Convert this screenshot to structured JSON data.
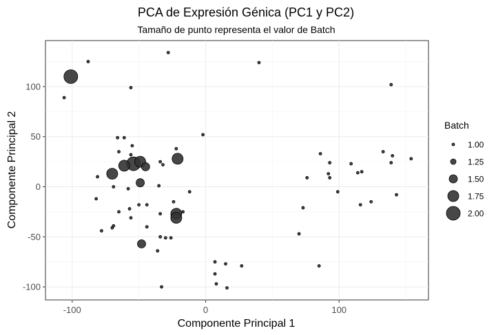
{
  "chart_data": {
    "type": "scatter",
    "title": "PCA de Expresión Génica (PC1 y PC2)",
    "subtitle": "Tamaño de punto representa el valor de Batch",
    "xlabel": "Componente Principal 1",
    "ylabel": "Componente Principal 2",
    "xlim": [
      -120,
      167
    ],
    "ylim": [
      -113,
      146
    ],
    "x_ticks": [
      -100,
      0,
      100
    ],
    "y_ticks": [
      -100,
      -50,
      0,
      50,
      100
    ],
    "grid": true,
    "point_color": "#333333",
    "legend": {
      "title": "Batch",
      "placement": "right",
      "entries": [
        "1.00",
        "1.25",
        "1.50",
        "1.75",
        "2.00"
      ],
      "values": [
        1.0,
        1.25,
        1.5,
        1.75,
        2.0
      ]
    },
    "points": [
      {
        "x": -101,
        "y": 110,
        "batch": 2.0
      },
      {
        "x": -88,
        "y": 125,
        "batch": 1.0
      },
      {
        "x": -106,
        "y": 89,
        "batch": 1.0
      },
      {
        "x": -28,
        "y": 134,
        "batch": 1.0
      },
      {
        "x": -56,
        "y": 99,
        "batch": 1.0
      },
      {
        "x": 40,
        "y": 124,
        "batch": 1.0
      },
      {
        "x": 139,
        "y": 102,
        "batch": 1.0
      },
      {
        "x": -2,
        "y": 52,
        "batch": 1.0
      },
      {
        "x": -66,
        "y": 49,
        "batch": 1.0
      },
      {
        "x": -61,
        "y": 49,
        "batch": 1.0
      },
      {
        "x": -55,
        "y": 41,
        "batch": 1.0
      },
      {
        "x": -65,
        "y": 35,
        "batch": 1.0
      },
      {
        "x": -56,
        "y": 32,
        "batch": 1.0
      },
      {
        "x": -54,
        "y": 23,
        "batch": 2.0
      },
      {
        "x": -49,
        "y": 25,
        "batch": 1.75
      },
      {
        "x": -61,
        "y": 21,
        "batch": 1.75
      },
      {
        "x": -45,
        "y": 20,
        "batch": 1.5
      },
      {
        "x": -70,
        "y": 13,
        "batch": 1.75
      },
      {
        "x": -49,
        "y": 4,
        "batch": 1.5
      },
      {
        "x": -21,
        "y": 28,
        "batch": 1.75
      },
      {
        "x": -22,
        "y": 38,
        "batch": 1.0
      },
      {
        "x": -34,
        "y": 25,
        "batch": 1.0
      },
      {
        "x": -32,
        "y": 22,
        "batch": 1.0
      },
      {
        "x": -81,
        "y": 10,
        "batch": 1.0
      },
      {
        "x": -69,
        "y": 0,
        "batch": 1.0
      },
      {
        "x": -58,
        "y": -2,
        "batch": 1.0
      },
      {
        "x": -35,
        "y": 1,
        "batch": 1.0
      },
      {
        "x": -12,
        "y": -5,
        "batch": 1.0
      },
      {
        "x": -82,
        "y": -12,
        "batch": 1.0
      },
      {
        "x": -24,
        "y": -15,
        "batch": 1.0
      },
      {
        "x": -50,
        "y": -18,
        "batch": 1.0
      },
      {
        "x": -44,
        "y": -18,
        "batch": 1.0
      },
      {
        "x": -57,
        "y": -22,
        "batch": 1.0
      },
      {
        "x": -65,
        "y": -25,
        "batch": 1.0
      },
      {
        "x": -22,
        "y": -27,
        "batch": 1.75
      },
      {
        "x": -22,
        "y": -31,
        "batch": 1.75
      },
      {
        "x": -17,
        "y": -25,
        "batch": 1.0
      },
      {
        "x": -34,
        "y": -27,
        "batch": 1.0
      },
      {
        "x": -56,
        "y": -31,
        "batch": 1.0
      },
      {
        "x": -69,
        "y": -39,
        "batch": 1.0
      },
      {
        "x": -70,
        "y": -41,
        "batch": 1.0
      },
      {
        "x": -78,
        "y": -44,
        "batch": 1.0
      },
      {
        "x": -44,
        "y": -40,
        "batch": 1.0
      },
      {
        "x": -34,
        "y": -50,
        "batch": 1.0
      },
      {
        "x": -30,
        "y": -51,
        "batch": 1.0
      },
      {
        "x": -26,
        "y": -51,
        "batch": 1.0
      },
      {
        "x": -48,
        "y": -57,
        "batch": 1.5
      },
      {
        "x": -36,
        "y": -64,
        "batch": 1.0
      },
      {
        "x": -33,
        "y": -100,
        "batch": 1.0
      },
      {
        "x": 7,
        "y": -75,
        "batch": 1.0
      },
      {
        "x": 7,
        "y": -87,
        "batch": 1.0
      },
      {
        "x": 8,
        "y": -97,
        "batch": 1.0
      },
      {
        "x": 15,
        "y": -77,
        "batch": 1.0
      },
      {
        "x": 27,
        "y": -79,
        "batch": 1.0
      },
      {
        "x": 16,
        "y": -101,
        "batch": 1.0
      },
      {
        "x": 86,
        "y": 33,
        "batch": 1.0
      },
      {
        "x": 93,
        "y": 24,
        "batch": 1.0
      },
      {
        "x": 92,
        "y": 13,
        "batch": 1.0
      },
      {
        "x": 93,
        "y": 9,
        "batch": 1.0
      },
      {
        "x": 76,
        "y": 9,
        "batch": 1.0
      },
      {
        "x": 99,
        "y": -5,
        "batch": 1.0
      },
      {
        "x": 109,
        "y": 23,
        "batch": 1.0
      },
      {
        "x": 114,
        "y": 14,
        "batch": 1.0
      },
      {
        "x": 117,
        "y": 15,
        "batch": 1.0
      },
      {
        "x": 133,
        "y": 35,
        "batch": 1.0
      },
      {
        "x": 140,
        "y": 31,
        "batch": 1.0
      },
      {
        "x": 139,
        "y": 24,
        "batch": 1.0
      },
      {
        "x": 154,
        "y": 28,
        "batch": 1.0
      },
      {
        "x": 143,
        "y": -8,
        "batch": 1.0
      },
      {
        "x": 116,
        "y": -18,
        "batch": 1.0
      },
      {
        "x": 124,
        "y": -15,
        "batch": 1.0
      },
      {
        "x": 73,
        "y": -21,
        "batch": 1.0
      },
      {
        "x": 70,
        "y": -47,
        "batch": 1.0
      },
      {
        "x": 85,
        "y": -79,
        "batch": 1.0
      }
    ]
  }
}
